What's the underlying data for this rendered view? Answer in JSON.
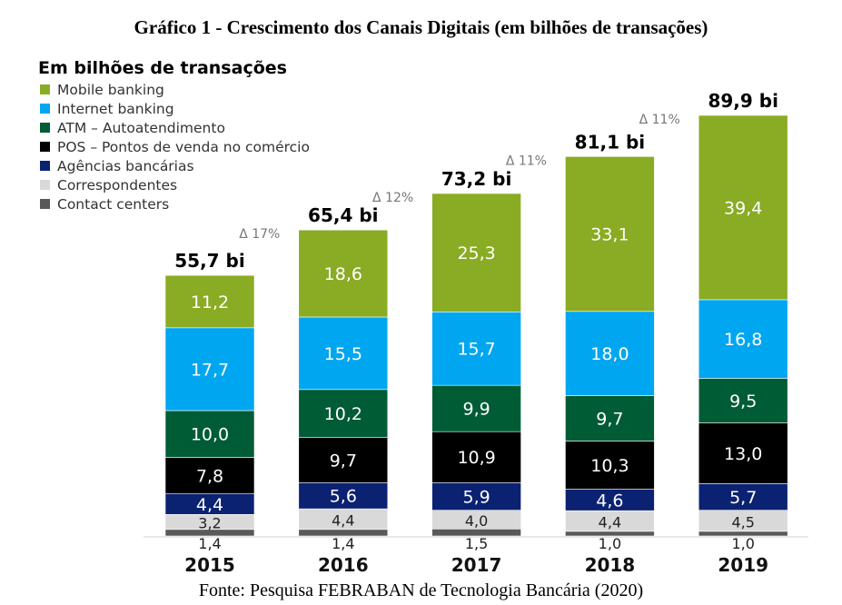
{
  "title": "Gráfico 1 - Crescimento dos Canais Digitais (em bilhões de transações)",
  "source": "Fonte: Pesquisa FEBRABAN de Tecnologia Bancária (2020)",
  "chart_data": {
    "type": "bar",
    "stacked": true,
    "legend_title": "Em bilhões de transações",
    "legend_placement": "top-left",
    "grid": false,
    "categories": [
      "2015",
      "2016",
      "2017",
      "2018",
      "2019"
    ],
    "series": [
      {
        "name": "Contact centers",
        "color": "#595959",
        "values": [
          1.4,
          1.4,
          1.5,
          1.0,
          1.0
        ],
        "labels": [
          "1,4",
          "1,4",
          "1,5",
          "1,0",
          "1,0"
        ]
      },
      {
        "name": "Correspondentes",
        "color": "#d9d9d9",
        "values": [
          3.2,
          4.4,
          4.0,
          4.4,
          4.5
        ],
        "labels": [
          "3,2",
          "4,4",
          "4,0",
          "4,4",
          "4,5"
        ]
      },
      {
        "name": "Agências bancárias",
        "color": "#0b2272",
        "values": [
          4.4,
          5.6,
          5.9,
          4.6,
          5.7
        ],
        "labels": [
          "4,4",
          "5,6",
          "5,9",
          "4,6",
          "5,7"
        ]
      },
      {
        "name": "POS – Pontos de venda no comércio",
        "color": "#000000",
        "values": [
          7.8,
          9.7,
          10.9,
          10.3,
          13.0
        ],
        "labels": [
          "7,8",
          "9,7",
          "10,9",
          "10,3",
          "13,0"
        ]
      },
      {
        "name": "ATM – Autoatendimento",
        "color": "#005c35",
        "values": [
          10.0,
          10.2,
          9.9,
          9.7,
          9.5
        ],
        "labels": [
          "10,0",
          "10,2",
          "9,9",
          "9,7",
          "9,5"
        ]
      },
      {
        "name": "Internet banking",
        "color": "#00a6f0",
        "values": [
          17.7,
          15.5,
          15.7,
          18.0,
          16.8
        ],
        "labels": [
          "17,7",
          "15,5",
          "15,7",
          "18,0",
          "16,8"
        ]
      },
      {
        "name": "Mobile banking",
        "color": "#8aab24",
        "values": [
          11.2,
          18.6,
          25.3,
          33.1,
          39.4
        ],
        "labels": [
          "11,2",
          "18,6",
          "25,3",
          "33,1",
          "39,4"
        ]
      }
    ],
    "legend_order": [
      "Mobile banking",
      "Internet banking",
      "ATM – Autoatendimento",
      "POS – Pontos de venda no comércio",
      "Agências bancárias",
      "Correspondentes",
      "Contact centers"
    ],
    "totals": [
      55.7,
      65.4,
      73.2,
      81.1,
      89.9
    ],
    "total_labels": [
      "55,7 bi",
      "65,4 bi",
      "73,2 bi",
      "81,1 bi",
      "89,9 bi"
    ],
    "growth_labels": [
      "",
      "Δ 17%",
      "Δ 12%",
      "Δ 11%",
      "Δ 11%"
    ],
    "ylim": [
      0,
      89.9
    ]
  }
}
